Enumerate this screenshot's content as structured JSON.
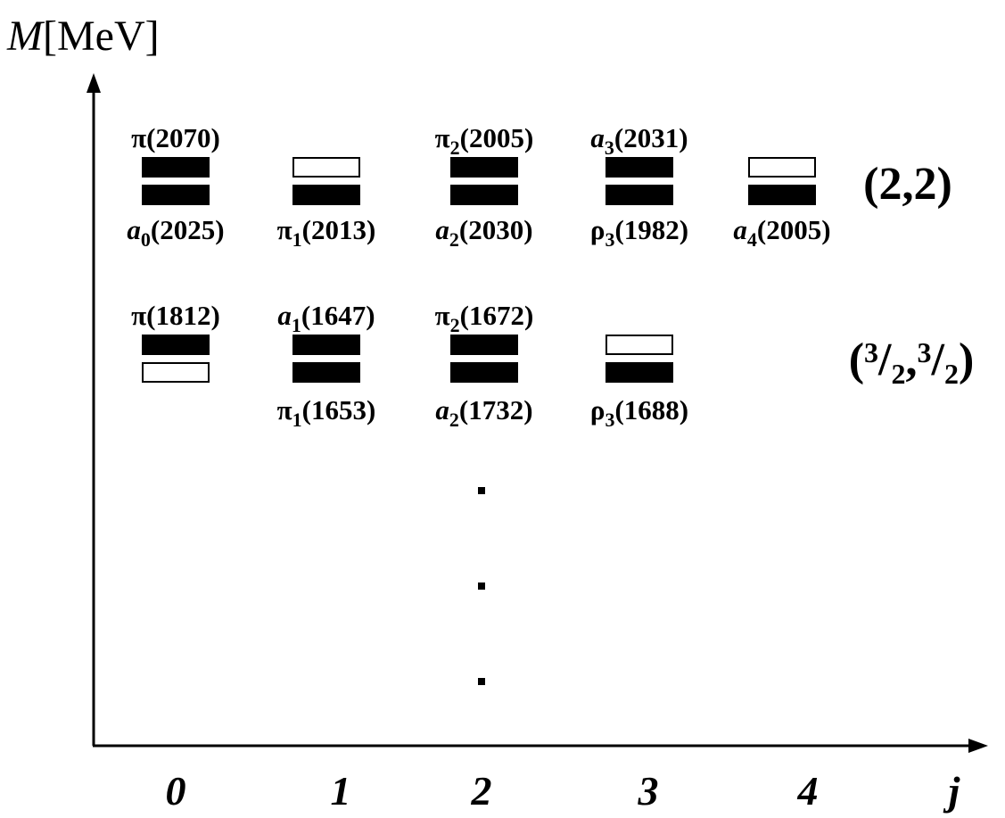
{
  "y_axis_label": {
    "symbol": "M",
    "unit": "[MeV]"
  },
  "x_axis_label": "j",
  "x_ticks": [
    "0",
    "1",
    "2",
    "3",
    "4"
  ],
  "multiplets": [
    {
      "label": "(2,2)",
      "entries": [
        {
          "j": 0,
          "upper": {
            "base": "π",
            "sub": "",
            "mass": "(2070)",
            "filled": true
          },
          "lower": {
            "base": "a",
            "sub": "0",
            "mass": "(2025)",
            "filled": true
          }
        },
        {
          "j": 1,
          "upper": {
            "base": "",
            "sub": "",
            "mass": "",
            "filled": false
          },
          "lower": {
            "base": "π",
            "sub": "1",
            "mass": "(2013)",
            "filled": true
          }
        },
        {
          "j": 2,
          "upper": {
            "base": "π",
            "sub": "2",
            "mass": "(2005)",
            "filled": true
          },
          "lower": {
            "base": "a",
            "sub": "2",
            "mass": "(2030)",
            "filled": true
          }
        },
        {
          "j": 3,
          "upper": {
            "base": "a",
            "sub": "3",
            "mass": "(2031)",
            "filled": true
          },
          "lower": {
            "base": "ρ",
            "sub": "3",
            "mass": "(1982)",
            "filled": true
          }
        },
        {
          "j": 4,
          "upper": {
            "base": "",
            "sub": "",
            "mass": "",
            "filled": false
          },
          "lower": {
            "base": "a",
            "sub": "4",
            "mass": "(2005)",
            "filled": true
          }
        }
      ]
    },
    {
      "label": "(3/2,3/2)",
      "entries": [
        {
          "j": 0,
          "upper": {
            "base": "π",
            "sub": "",
            "mass": "(1812)",
            "filled": true
          },
          "lower": {
            "base": "",
            "sub": "",
            "mass": "",
            "filled": false
          }
        },
        {
          "j": 1,
          "upper": {
            "base": "a",
            "sub": "1",
            "mass": "(1647)",
            "filled": true
          },
          "lower": {
            "base": "π",
            "sub": "1",
            "mass": "(1653)",
            "filled": true
          }
        },
        {
          "j": 2,
          "upper": {
            "base": "π",
            "sub": "2",
            "mass": "(1672)",
            "filled": true
          },
          "lower": {
            "base": "a",
            "sub": "2",
            "mass": "(1732)",
            "filled": true
          }
        },
        {
          "j": 3,
          "upper": {
            "base": "",
            "sub": "",
            "mass": "",
            "filled": false
          },
          "lower": {
            "base": "ρ",
            "sub": "3",
            "mass": "(1688)",
            "filled": true
          }
        }
      ]
    }
  ],
  "continuation": "⋮"
}
